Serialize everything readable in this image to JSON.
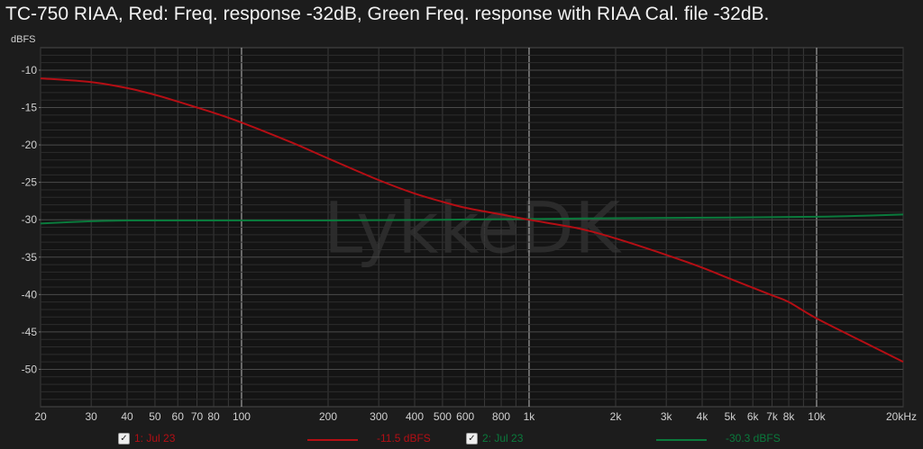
{
  "title": "TC-750 RIAA, Red: Freq. response -32dB, Green Freq. response with RIAA Cal. file -32dB.",
  "watermark": "LykkeDK",
  "colors": {
    "background": "#1c1c1c",
    "plot_background": "#141414",
    "grid": "#3a3a3a",
    "grid_major": "#bdbdbd",
    "series_1": "#b50e14",
    "series_2": "#0a7a3c",
    "text": "#d0d0d0"
  },
  "legend": [
    {
      "check_icon": "checkbox-checked-icon",
      "checked": true,
      "label": "1: Jul 23",
      "value": "-11.5 dBFS",
      "color": "#b50e14"
    },
    {
      "check_icon": "checkbox-checked-icon",
      "checked": true,
      "label": "2: Jul 23",
      "value": "-30.3 dBFS",
      "color": "#0a7a3c"
    }
  ],
  "chart_data": {
    "type": "line",
    "title": "TC-750 RIAA, Red: Freq. response -32dB, Green Freq. response with RIAA Cal. file -32dB.",
    "xlabel": "",
    "ylabel": "dBFS",
    "x_scale": "log",
    "xlim": [
      20,
      20000
    ],
    "ylim": [
      -55,
      -7
    ],
    "grid": true,
    "legend_placement": "bottom",
    "x_ticks": [
      20,
      30,
      40,
      50,
      60,
      70,
      80,
      100,
      200,
      300,
      400,
      500,
      600,
      800,
      1000,
      2000,
      3000,
      4000,
      5000,
      6000,
      7000,
      8000,
      10000,
      20000
    ],
    "x_tick_labels": [
      "20",
      "30",
      "40",
      "50",
      "60",
      "70",
      "80",
      "100",
      "200",
      "300",
      "400",
      "500",
      "600",
      "800",
      "1k",
      "2k",
      "3k",
      "4k",
      "5k",
      "6k",
      "7k",
      "8k",
      "10k",
      "20kHz"
    ],
    "y_ticks": [
      -10,
      -15,
      -20,
      -25,
      -30,
      -35,
      -40,
      -45,
      -50
    ],
    "y_tick_labels": [
      "-10",
      "-15",
      "-20",
      "-25",
      "-30",
      "-35",
      "-40",
      "-45",
      "-50"
    ],
    "series": [
      {
        "name": "1: Jul 23",
        "color": "#b50e14",
        "x": [
          20,
          30,
          40,
          50,
          60,
          70,
          80,
          100,
          150,
          200,
          300,
          400,
          500,
          600,
          800,
          1000,
          1500,
          2000,
          3000,
          4000,
          5000,
          6000,
          7000,
          8000,
          10000,
          15000,
          20000
        ],
        "y": [
          -11.1,
          -11.6,
          -12.4,
          -13.3,
          -14.2,
          -15.0,
          -15.7,
          -17.0,
          -19.7,
          -21.8,
          -24.7,
          -26.5,
          -27.6,
          -28.4,
          -29.3,
          -30.0,
          -31.2,
          -32.5,
          -34.7,
          -36.4,
          -37.9,
          -39.1,
          -40.1,
          -41.0,
          -43.2,
          -46.6,
          -49.0
        ]
      },
      {
        "name": "2: Jul 23",
        "color": "#0a7a3c",
        "x": [
          20,
          30,
          40,
          50,
          100,
          200,
          500,
          1000,
          2000,
          5000,
          10000,
          15000,
          20000
        ],
        "y": [
          -30.5,
          -30.2,
          -30.1,
          -30.1,
          -30.1,
          -30.1,
          -30.0,
          -29.9,
          -29.8,
          -29.7,
          -29.6,
          -29.45,
          -29.3
        ]
      }
    ]
  }
}
